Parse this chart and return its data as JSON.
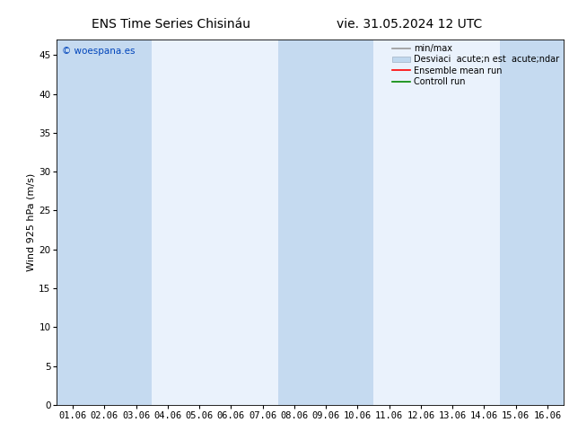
{
  "title_left": "ENS Time Series Chisináu",
  "title_right": "vie. 31.05.2024 12 UTC",
  "ylabel": "Wind 925 hPa (m/s)",
  "watermark": "© woespana.es",
  "ylim": [
    0,
    47
  ],
  "yticks": [
    0,
    5,
    10,
    15,
    20,
    25,
    30,
    35,
    40,
    45
  ],
  "x_labels": [
    "01.06",
    "02.06",
    "03.06",
    "04.06",
    "05.06",
    "06.06",
    "07.06",
    "08.06",
    "09.06",
    "10.06",
    "11.06",
    "12.06",
    "13.06",
    "14.06",
    "15.06",
    "16.06"
  ],
  "n_points": 16,
  "bg_color": "#ffffff",
  "plot_bg_color": "#ddeeff",
  "shaded_color": "#c5daf0",
  "unshaded_color": "#eaf2fc",
  "shaded_columns": [
    0,
    1,
    2,
    7,
    8,
    9,
    14,
    15
  ],
  "legend_items": [
    {
      "label": "min/max",
      "color": "#999999",
      "style": "errorbar"
    },
    {
      "label": "Desviaci  acute;n est  acute;ndar",
      "color": "#bbccdd",
      "style": "rect"
    },
    {
      "label": "Ensemble mean run",
      "color": "#ff0000",
      "style": "line"
    },
    {
      "label": "Controll run",
      "color": "#008800",
      "style": "line"
    }
  ],
  "title_fontsize": 10,
  "axis_fontsize": 8,
  "tick_fontsize": 7.5,
  "legend_fontsize": 7
}
